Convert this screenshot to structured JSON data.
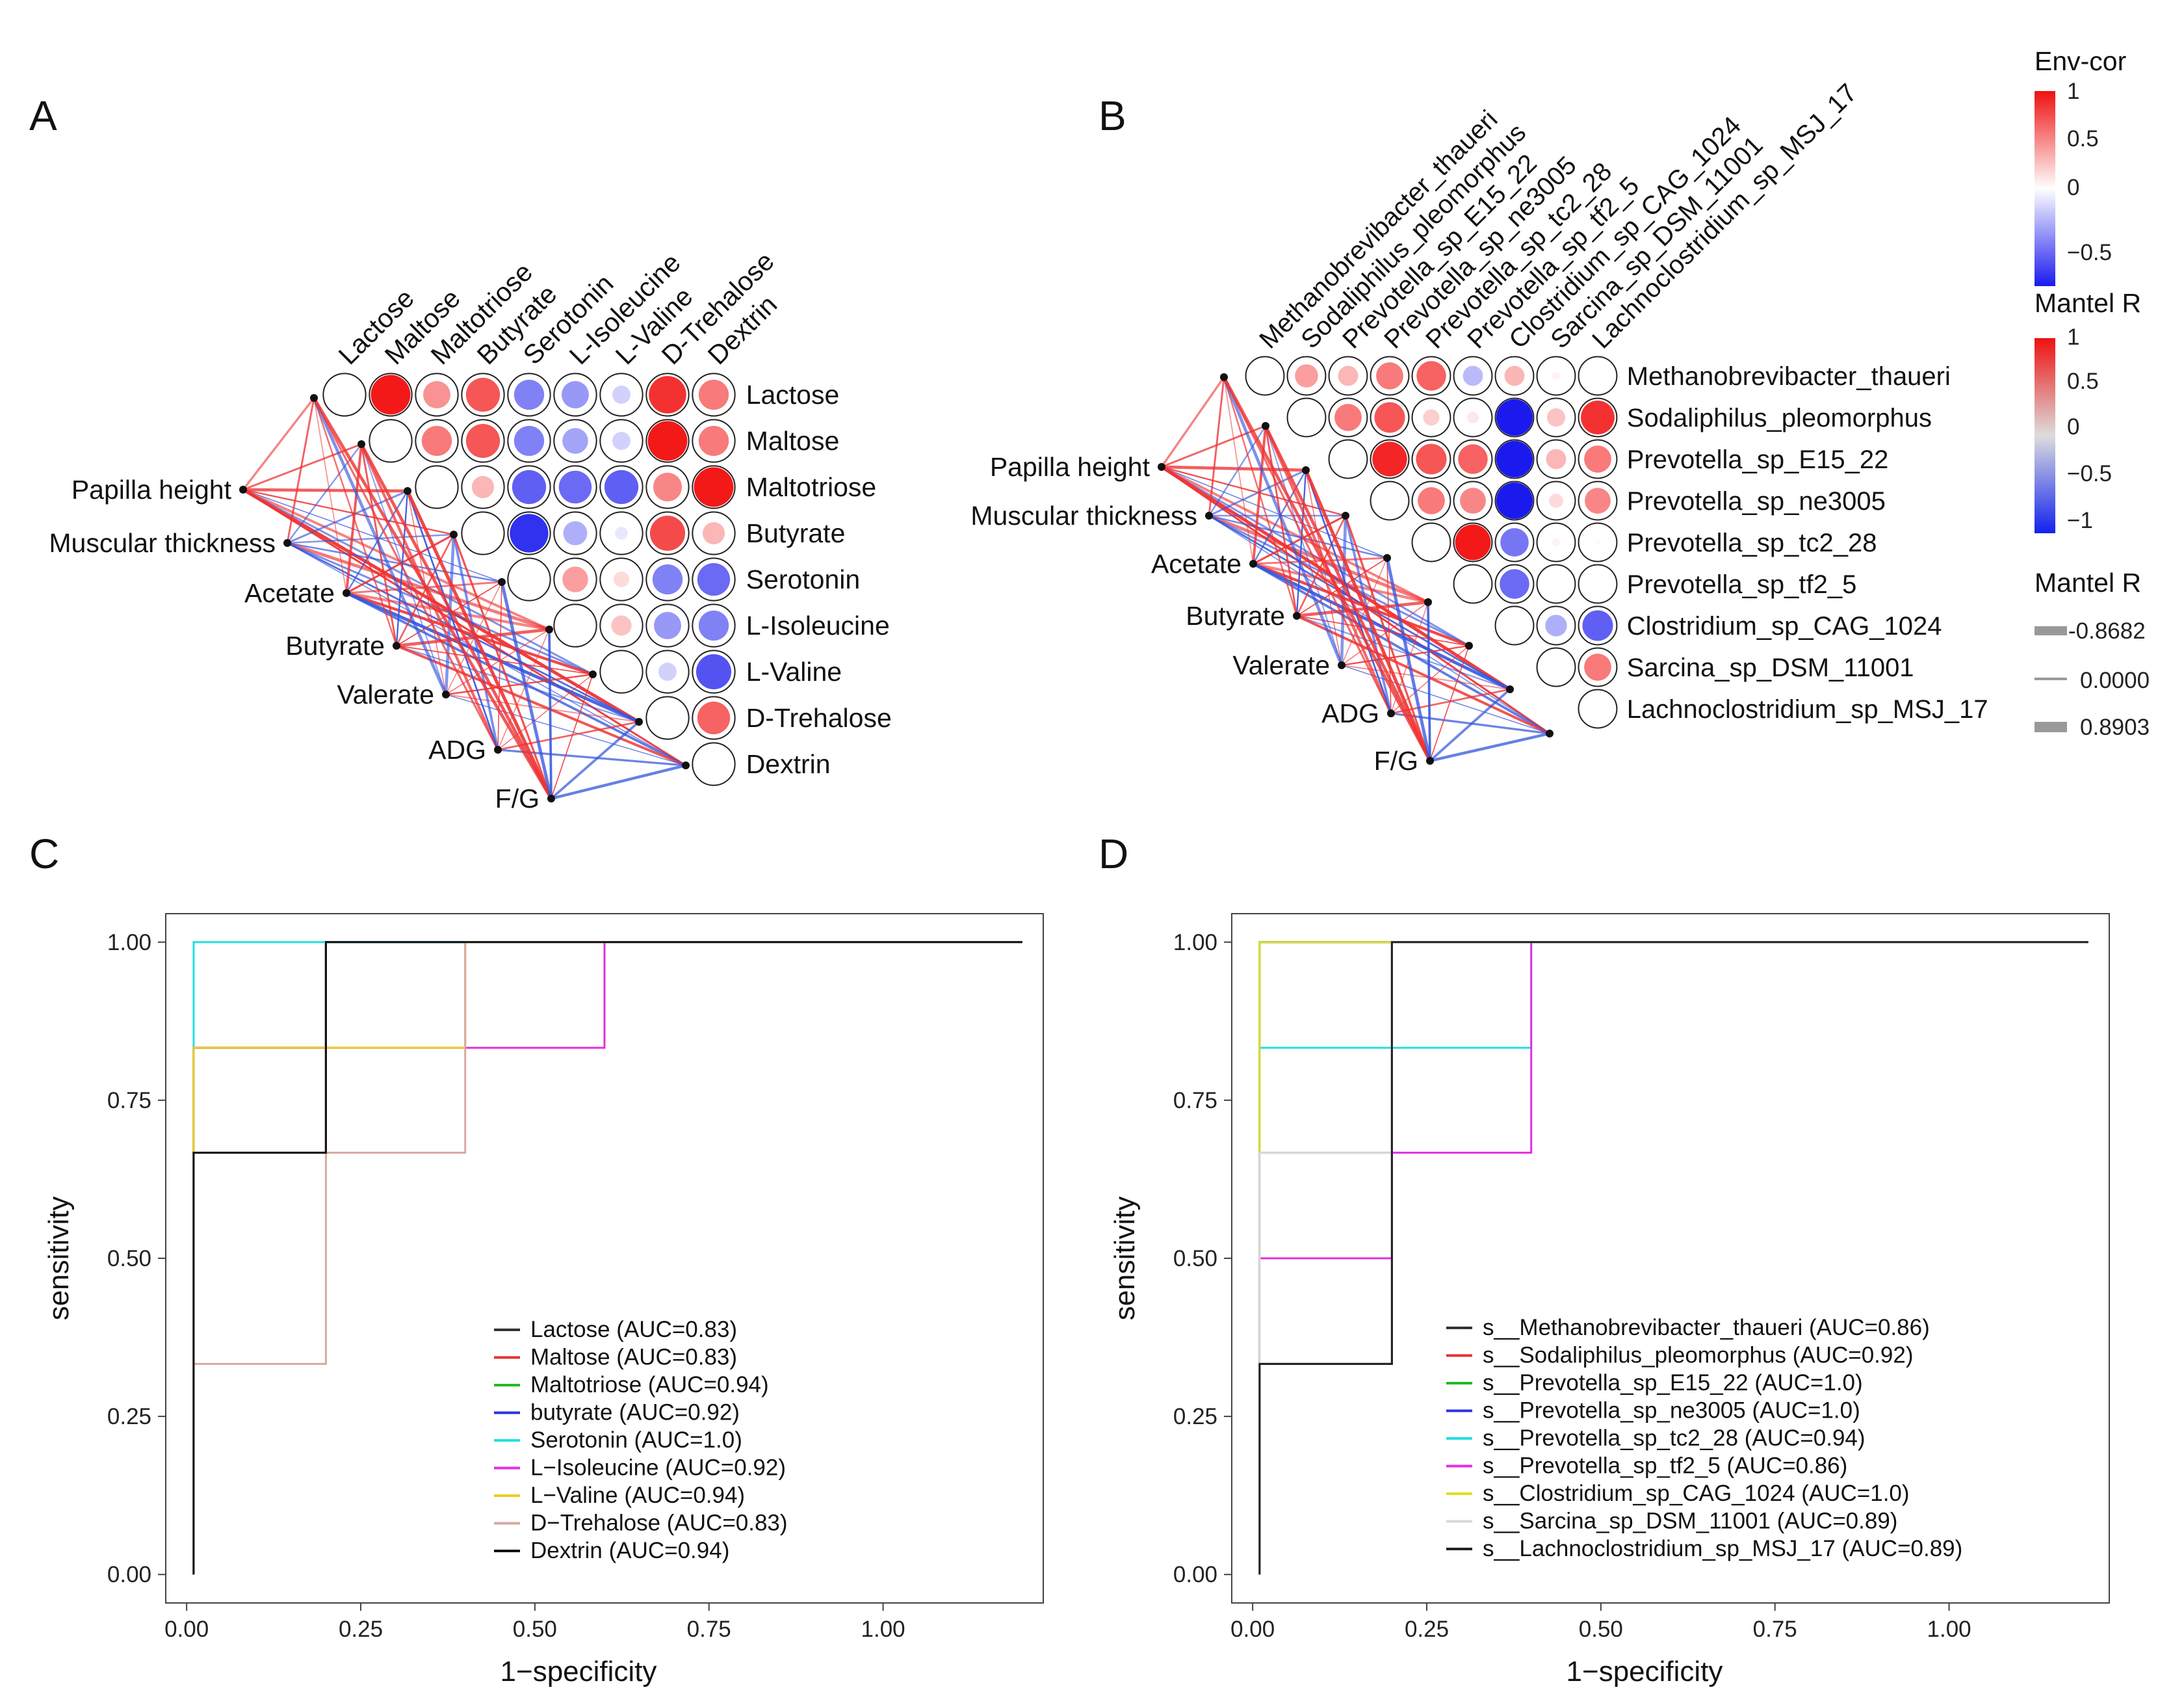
{
  "panel_letters": [
    "A",
    "B",
    "C",
    "D"
  ],
  "colors": {
    "pos": "#f20d0d",
    "neg": "#1a1aee",
    "grid_border": "#222222",
    "mantel_pos": "#ee3333",
    "mantel_neg": "#3355dd"
  },
  "legends": {
    "envcor_title": "Env-cor",
    "envcor_ticks": [
      "1",
      "0.5",
      "0",
      "−0.5"
    ],
    "mantel_color_title": "Mantel R",
    "mantel_color_ticks": [
      "1",
      "0.5",
      "0",
      "−0.5",
      "−1"
    ],
    "mantel_size_title": "Mantel R",
    "mantel_size_entries": [
      "-0.8682",
      "0.0000",
      "0.8903"
    ]
  },
  "chart_data": [
    {
      "id": "A",
      "type": "heatmap",
      "title": "",
      "variables": [
        "Lactose",
        "Maltose",
        "Maltotriose",
        "Butyrate",
        "Serotonin",
        "L-Isoleucine",
        "L-Valine",
        "D-Trehalose",
        "Dextrin"
      ],
      "correlations": [
        [
          0.95,
          0.45,
          0.7,
          -0.55,
          -0.45,
          -0.2,
          0.85,
          0.55
        ],
        [
          0.55,
          0.7,
          -0.55,
          -0.4,
          -0.2,
          0.95,
          0.55
        ],
        [
          0.3,
          -0.7,
          -0.65,
          -0.7,
          0.5,
          0.95
        ],
        [
          -0.9,
          -0.35,
          -0.1,
          0.75,
          0.3
        ],
        [
          0.4,
          0.15,
          -0.55,
          -0.65
        ],
        [
          0.25,
          -0.45,
          -0.55
        ],
        [
          -0.2,
          -0.75
        ],
        [
          0.65
        ]
      ],
      "env_factors": [
        "Papilla height",
        "Muscular thickness",
        "Acetate",
        "Butyrate",
        "Valerate",
        "ADG",
        "F/G"
      ]
    },
    {
      "id": "B",
      "type": "heatmap",
      "title": "",
      "variables": [
        "Methanobrevibacter_thaueri",
        "Sodaliphilus_pleomorphus",
        "Prevotella_sp_E15_22",
        "Prevotella_sp_ne3005",
        "Prevotella_sp_tc2_28",
        "Prevotella_sp_tf2_5",
        "Clostridium_sp_CAG_1024",
        "Sarcina_sp_DSM_11001",
        "Lachnoclostridium_sp_MSJ_17"
      ],
      "correlations": [
        [
          0.4,
          0.3,
          0.55,
          0.65,
          -0.3,
          0.3,
          0.05
        ],
        [
          0.55,
          0.7,
          0.2,
          0.1,
          -1.0,
          0.25,
          0.85
        ],
        [
          0.9,
          0.7,
          0.65,
          -1.0,
          0.3,
          0.55
        ],
        [
          0.55,
          0.5,
          -1.0,
          0.15,
          0.5
        ],
        [
          0.95,
          -0.6,
          0.05,
          0.02
        ],
        [
          -0.65,
          0.0,
          0.0
        ],
        [
          -0.35,
          -0.7
        ],
        [
          0.55
        ],
        []
      ],
      "env_factors": [
        "Papilla height",
        "Muscular thickness",
        "Acetate",
        "Butyrate",
        "Valerate",
        "ADG",
        "F/G"
      ]
    },
    {
      "id": "C",
      "type": "line",
      "title": "",
      "xlabel": "1−specificity",
      "ylabel": "sensitivity",
      "xlim": [
        -0.03,
        1.23
      ],
      "ylim": [
        -0.045,
        1.045
      ],
      "xticks": [
        "0.00",
        "0.25",
        "0.50",
        "0.75",
        "1.00"
      ],
      "yticks": [
        "0.00",
        "0.25",
        "0.50",
        "0.75",
        "1.00"
      ],
      "series": [
        {
          "name": "Lactose (AUC=0.83)",
          "color": "#333333",
          "x": [
            0.01,
            0.01,
            0.2,
            0.2,
            1.2
          ],
          "y": [
            0,
            0.667,
            0.667,
            1,
            1
          ]
        },
        {
          "name": "Maltose (AUC=0.83)",
          "color": "#e83030",
          "x": [
            0.01,
            0.01,
            0.2,
            0.2,
            1.2
          ],
          "y": [
            0,
            0.667,
            0.667,
            1,
            1
          ]
        },
        {
          "name": "Maltotriose (AUC=0.94)",
          "color": "#22bb22",
          "x": [
            0.01,
            0.01,
            0.2,
            0.2,
            1.2
          ],
          "y": [
            0,
            0.833,
            0.833,
            1,
            1
          ]
        },
        {
          "name": "butyrate (AUC=0.92)",
          "color": "#2b33e0",
          "x": [
            0.01,
            0.01,
            0.2,
            0.2,
            1.2
          ],
          "y": [
            0,
            0.833,
            0.833,
            1,
            1
          ]
        },
        {
          "name": "Serotonin (AUC=1.0)",
          "color": "#22e0e0",
          "x": [
            0.01,
            0.01,
            1.2
          ],
          "y": [
            0,
            1,
            1
          ]
        },
        {
          "name": "L−Isoleucine (AUC=0.92)",
          "color": "#e030e0",
          "x": [
            0.01,
            0.01,
            0.6,
            0.6,
            1.2
          ],
          "y": [
            0,
            0.833,
            0.833,
            1,
            1
          ]
        },
        {
          "name": "L−Valine (AUC=0.94)",
          "color": "#eecc22",
          "x": [
            0.01,
            0.01,
            0.4,
            0.4,
            1.2
          ],
          "y": [
            0,
            0.833,
            0.833,
            1,
            1
          ]
        },
        {
          "name": "D−Trehalose (AUC=0.83)",
          "color": "#d9a8a0",
          "x": [
            0.01,
            0.01,
            0.2,
            0.2,
            0.4,
            0.4,
            1.2
          ],
          "y": [
            0,
            0.333,
            0.333,
            0.667,
            0.667,
            1,
            1
          ]
        },
        {
          "name": "Dextrin (AUC=0.94)",
          "color": "#111111",
          "x": [
            0.01,
            0.01,
            0.2,
            0.2,
            1.2
          ],
          "y": [
            0,
            0.667,
            0.667,
            1,
            1
          ]
        }
      ]
    },
    {
      "id": "D",
      "type": "line",
      "title": "",
      "xlabel": "1−specificity",
      "ylabel": "sensitivity",
      "xlim": [
        -0.03,
        1.23
      ],
      "ylim": [
        -0.045,
        1.045
      ],
      "xticks": [
        "0.00",
        "0.25",
        "0.50",
        "0.75",
        "1.00"
      ],
      "yticks": [
        "0.00",
        "0.25",
        "0.50",
        "0.75",
        "1.00"
      ],
      "series": [
        {
          "name": "s__Methanobrevibacter_thaueri (AUC=0.86)",
          "color": "#333333",
          "x": [
            0.01,
            0.01,
            0.2,
            0.2,
            1.2
          ],
          "y": [
            0,
            0.333,
            0.333,
            1,
            1
          ]
        },
        {
          "name": "s__Sodaliphilus_pleomorphus (AUC=0.92)",
          "color": "#e83030",
          "x": [
            0.01,
            0.01,
            0.2,
            0.2,
            1.2
          ],
          "y": [
            0,
            0.667,
            0.667,
            1,
            1
          ]
        },
        {
          "name": "s__Prevotella_sp_E15_22 (AUC=1.0)",
          "color": "#22bb22",
          "x": [
            0.01,
            0.01,
            1.2
          ],
          "y": [
            0,
            1,
            1
          ]
        },
        {
          "name": "s__Prevotella_sp_ne3005 (AUC=1.0)",
          "color": "#2b33e0",
          "x": [
            0.01,
            0.01,
            1.2
          ],
          "y": [
            0,
            1,
            1
          ]
        },
        {
          "name": "s__Prevotella_sp_tc2_28 (AUC=0.94)",
          "color": "#22e0e0",
          "x": [
            0.01,
            0.01,
            0.4,
            0.4,
            1.2
          ],
          "y": [
            0,
            0.833,
            0.833,
            1,
            1
          ]
        },
        {
          "name": "s__Prevotella_sp_tf2_5 (AUC=0.86)",
          "color": "#e030e0",
          "x": [
            0.01,
            0.01,
            0.2,
            0.2,
            0.4,
            0.4,
            1.2
          ],
          "y": [
            0,
            0.5,
            0.5,
            0.667,
            0.667,
            1,
            1
          ]
        },
        {
          "name": "s__Clostridium_sp_CAG_1024 (AUC=1.0)",
          "color": "#dddd22",
          "x": [
            0.01,
            0.01,
            1.2
          ],
          "y": [
            0,
            1,
            1
          ]
        },
        {
          "name": "s__Sarcina_sp_DSM_11001 (AUC=0.89)",
          "color": "#d9d9d9",
          "x": [
            0.01,
            0.01,
            0.2,
            0.2,
            1.2
          ],
          "y": [
            0,
            0.667,
            0.667,
            1,
            1
          ]
        },
        {
          "name": "s__Lachnoclostridium_sp_MSJ_17 (AUC=0.89)",
          "color": "#222222",
          "x": [
            0.01,
            0.01,
            0.2,
            0.2,
            1.2
          ],
          "y": [
            0,
            0.333,
            0.333,
            1,
            1
          ]
        }
      ]
    }
  ]
}
